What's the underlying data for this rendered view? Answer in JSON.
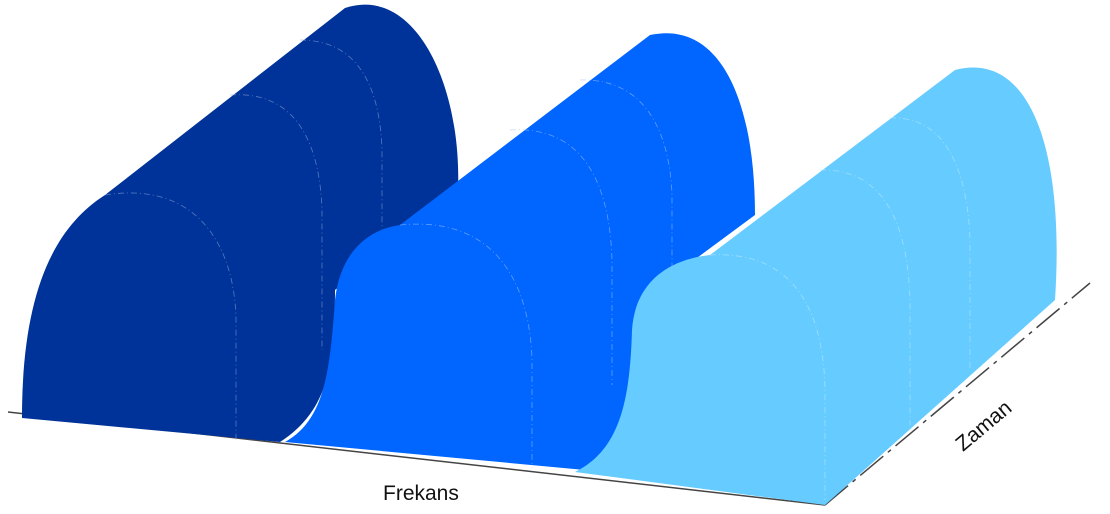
{
  "labels": {
    "x_axis": "Frekans",
    "y_axis": "Zaman"
  },
  "colors": {
    "band_1": "#003399",
    "band_2": "#0066FF",
    "band_3": "#66CCFF",
    "axis": "#444444",
    "contour": "#9FB3D9"
  },
  "bands": [
    {
      "name": "band-1",
      "color_key": "band_1"
    },
    {
      "name": "band-2",
      "color_key": "band_2"
    },
    {
      "name": "band-3",
      "color_key": "band_3"
    }
  ]
}
